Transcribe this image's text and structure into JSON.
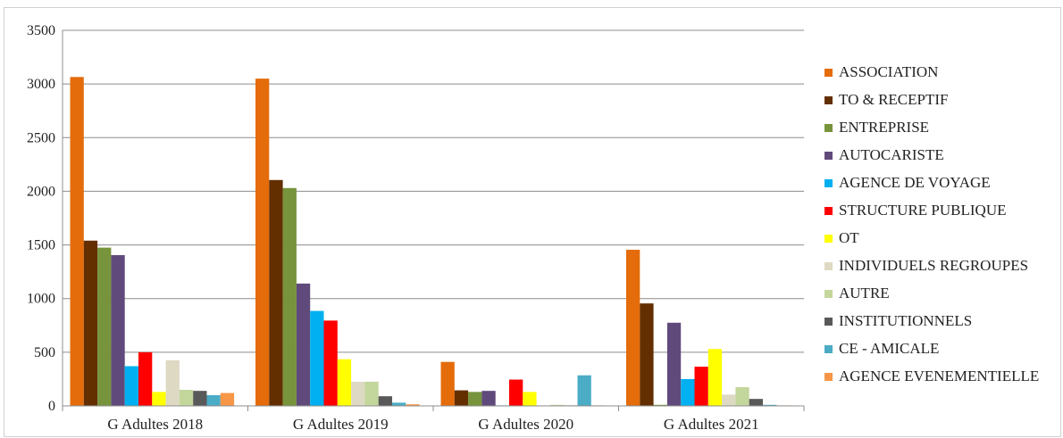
{
  "chart_data": {
    "type": "bar",
    "categories": [
      "G Adultes 2018",
      "G Adultes 2019",
      "G Adultes 2020",
      "G Adultes 2021"
    ],
    "ylim": [
      0,
      3500
    ],
    "yticks": [
      "0",
      "500",
      "1000",
      "1500",
      "2000",
      "2500",
      "3000",
      "3500"
    ],
    "grid": true,
    "legend_position": "right",
    "series": [
      {
        "name": "ASSOCIATION",
        "color": "#E46C0A",
        "values": [
          3065,
          3050,
          410,
          1455
        ]
      },
      {
        "name": "TO & RECEPTIF",
        "color": "#632F00",
        "values": [
          1540,
          2105,
          145,
          955
        ]
      },
      {
        "name": "ENTREPRISE",
        "color": "#77933C",
        "values": [
          1475,
          2030,
          130,
          10
        ]
      },
      {
        "name": "AUTOCARISTE",
        "color": "#604A7B",
        "values": [
          1405,
          1140,
          140,
          775
        ]
      },
      {
        "name": "AGENCE DE VOYAGE",
        "color": "#00B0F0",
        "values": [
          370,
          885,
          5,
          250
        ]
      },
      {
        "name": "STRUCTURE PUBLIQUE",
        "color": "#FF0000",
        "values": [
          500,
          795,
          245,
          365
        ]
      },
      {
        "name": "OT",
        "color": "#FFFF00",
        "values": [
          130,
          435,
          130,
          530
        ]
      },
      {
        "name": "INDIVIDUELS REGROUPES",
        "color": "#DDD9C3",
        "values": [
          425,
          225,
          5,
          105
        ]
      },
      {
        "name": "AUTRE",
        "color": "#C3D69B",
        "values": [
          150,
          225,
          10,
          175
        ]
      },
      {
        "name": "INSTITUTIONNELS",
        "color": "#595959",
        "values": [
          140,
          90,
          5,
          65
        ]
      },
      {
        "name": "CE - AMICALE",
        "color": "#4BACC6",
        "values": [
          100,
          30,
          285,
          10
        ]
      },
      {
        "name": "AGENCE EVENEMENTIELLE",
        "color": "#F79646",
        "values": [
          120,
          15,
          5,
          5
        ]
      }
    ]
  }
}
